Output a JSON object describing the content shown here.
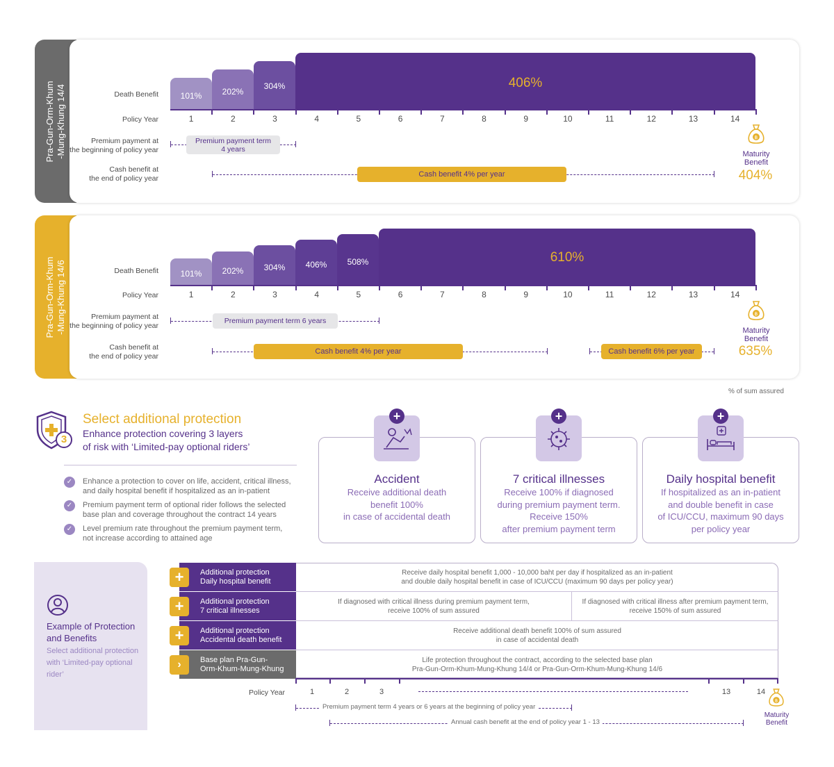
{
  "plan1": {
    "tab_label_line1": "Pra-Gun-Orm-Khum",
    "tab_label_line2": "-Mung-Khung 14/4",
    "tab_color": "#6b6b6b",
    "death_benefit_label": "Death Benefit",
    "policy_year_label": "Policy Year",
    "premium_label_line1": "Premium payment at",
    "premium_label_line2": "the beginning of policy year",
    "cash_label_line1": "Cash benefit at",
    "cash_label_line2": "the end of policy year",
    "bars": [
      "101%",
      "202%",
      "304%",
      "406%"
    ],
    "bar_levels": [
      101,
      202,
      304,
      406
    ],
    "years": [
      "1",
      "2",
      "3",
      "4",
      "5",
      "6",
      "7",
      "8",
      "9",
      "10",
      "11",
      "13",
      "12",
      "14"
    ],
    "premium_pill_line1": "Premium payment term",
    "premium_pill_line2": "4 years",
    "cash_pill": "Cash benefit 4% per year",
    "maturity_line1": "Maturity",
    "maturity_line2": "Benefit",
    "maturity_pct": "404%"
  },
  "plan2": {
    "tab_label_line1": "Pra-Gun-Orm-Khum",
    "tab_label_line2": "-Mung-Khung 14/6",
    "tab_color": "#e6b12c",
    "death_benefit_label": "Death Benefit",
    "policy_year_label": "Policy Year",
    "premium_label_line1": "Premium payment at",
    "premium_label_line2": "the beginning of policy year",
    "cash_label_line1": "Cash benefit at",
    "cash_label_line2": "the end of policy year",
    "bars": [
      "101%",
      "202%",
      "304%",
      "406%",
      "508%",
      "610%"
    ],
    "bar_levels": [
      101,
      202,
      304,
      406,
      508,
      610
    ],
    "years": [
      "1",
      "2",
      "3",
      "4",
      "5",
      "6",
      "7",
      "8",
      "9",
      "10",
      "11",
      "12",
      "13",
      "14"
    ],
    "premium_pill": "Premium payment term 6 years",
    "cash_pill_1": "Cash benefit 4% per year",
    "cash_pill_2": "Cash benefit 6% per year",
    "maturity_line1": "Maturity",
    "maturity_line2": "Benefit",
    "maturity_pct": "635%"
  },
  "sum_assured_note": "% of sum assured",
  "additional": {
    "title": "Select additional protection",
    "subtitle_line1": "Enhance protection covering 3 layers",
    "subtitle_line2": "of risk with ‘Limited-pay optional riders’",
    "badge_number": "3",
    "bullets": [
      {
        "line1": "Enhance a protection to cover on life, accident, critical illness,",
        "line2": "and daily hospital benefit if hospitalized as an in-patient"
      },
      {
        "line1": "Premium payment term of optional rider follows the selected",
        "line2": "base plan and coverage throughout the contract 14 years"
      },
      {
        "line1": "Level premium rate throughout the premium payment term,",
        "line2": "not increase according to attained age"
      }
    ]
  },
  "riders": [
    {
      "title": "Accident",
      "desc": [
        "Receive additional death",
        "benefit 100%",
        "in case of accidental death"
      ],
      "icon": "accident-icon"
    },
    {
      "title": "7 critical illnesses",
      "desc": [
        "Receive 100% if diagnosed",
        "during premium payment term.",
        "Receive 150%",
        "after premium payment term"
      ],
      "icon": "virus-icon"
    },
    {
      "title": "Daily hospital benefit",
      "desc": [
        "If hospitalized as an in-patient",
        "and double benefit in case",
        "of ICU/CCU, maximum 90 days",
        "per policy year"
      ],
      "icon": "hospital-bed-icon"
    }
  ],
  "example": {
    "title_line1": "Example of Protection",
    "title_line2": "and Benefits",
    "desc_line1": "Select additional protection",
    "desc_line2": "with ‘Limited-pay optional",
    "desc_line3": "rider’"
  },
  "table": {
    "rows": [
      {
        "label_line1": "Additional protection",
        "label_line2": "Daily hospital benefit",
        "cell_line1": "Receive daily hospital benefit 1,000 - 10,000 baht per day if hospitalized as an in-patient",
        "cell_line2": "and double daily hospital benefit in case of ICU/CCU (maximum 90 days per policy year)"
      },
      {
        "label_line1": "Additional protection",
        "label_line2": "7 critical illnesses",
        "cell_a_line1": "If diagnosed with critical illness during premium payment term,",
        "cell_a_line2": "receive 100% of sum assured",
        "cell_b_line1": "If diagnosed with critical illness after premium payment term,",
        "cell_b_line2": "receive 150% of sum assured"
      },
      {
        "label_line1": "Additional protection",
        "label_line2": "Accidental death benefit",
        "cell_line1": "Receive additional death benefit 100% of sum assured",
        "cell_line2": "in case of accidental death"
      },
      {
        "label_line1": "Base plan Pra-Gun-",
        "label_line2": "Orm-Khum-Mung-Khung",
        "cell_line1": "Life protection throughout the contract, according to the selected base plan",
        "cell_line2": "Pra-Gun-Orm-Khum-Mung-Khung 14/4 or Pra-Gun-Orm-Khum-Mung-Khung 14/6"
      }
    ],
    "policy_year_label": "Policy Year",
    "years": [
      "1",
      "2",
      "3",
      "13",
      "14"
    ],
    "premium_term_text": "Premium payment term 4 years or 6 years at the beginning of policy year",
    "annual_cash_text": "Annual cash benefit at the end of policy year 1 - 13",
    "maturity_line1": "Maturity",
    "maturity_line2": "Benefit"
  },
  "colors": {
    "purple": "#55318a",
    "gold": "#e6b12c",
    "gray": "#6b6b6b",
    "lavender": "#e7e2f0"
  }
}
